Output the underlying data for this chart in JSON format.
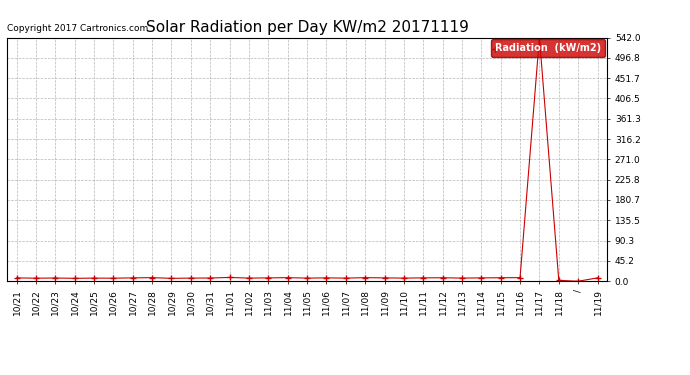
{
  "title": "Solar Radiation per Day KW/m2 20171119",
  "copyright_text": "Copyright 2017 Cartronics.com",
  "legend_label": "Radiation  (kW/m2)",
  "line_color": "#cc0000",
  "marker_color": "#cc0000",
  "background_color": "#ffffff",
  "grid_color": "#999999",
  "ylim": [
    0.0,
    542.0
  ],
  "yticks": [
    0.0,
    45.2,
    90.3,
    135.5,
    180.7,
    225.8,
    271.0,
    316.2,
    361.3,
    406.5,
    451.7,
    496.8,
    542.0
  ],
  "dates": [
    "10/21",
    "10/22",
    "10/23",
    "10/24",
    "10/25",
    "10/26",
    "10/27",
    "10/28",
    "10/29",
    "10/30",
    "10/31",
    "11/01",
    "11/02",
    "11/03",
    "11/04",
    "11/05",
    "11/06",
    "11/07",
    "11/08",
    "11/09",
    "11/10",
    "11/11",
    "11/12",
    "11/13",
    "11/14",
    "11/15",
    "11/16",
    "11/17",
    "11/18",
    "/",
    "11/19"
  ],
  "values": [
    7.5,
    6.8,
    7.2,
    6.5,
    7.0,
    6.8,
    7.5,
    8.0,
    6.5,
    7.0,
    7.2,
    8.5,
    7.0,
    7.5,
    8.0,
    7.0,
    7.5,
    7.0,
    8.0,
    7.5,
    7.0,
    7.5,
    7.8,
    7.0,
    7.5,
    7.8,
    8.0,
    542.0,
    2.0,
    0.0,
    7.5
  ],
  "figsize": [
    6.9,
    3.75
  ],
  "dpi": 100,
  "title_fontsize": 11,
  "copyright_fontsize": 6.5,
  "legend_fontsize": 7,
  "tick_fontsize": 6.5,
  "border_color": "#000000"
}
